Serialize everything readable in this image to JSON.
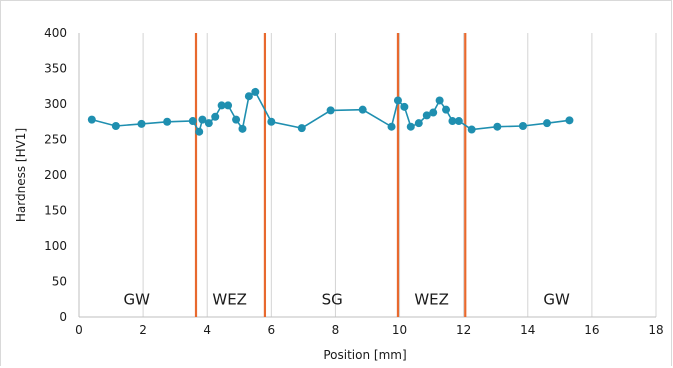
{
  "chart_data": {
    "type": "line",
    "xlabel": "Position [mm]",
    "ylabel": "Hardness [HV1]",
    "xlim": [
      0,
      18
    ],
    "ylim": [
      0,
      400
    ],
    "xticks": [
      0,
      2,
      4,
      6,
      8,
      10,
      12,
      14,
      16,
      18
    ],
    "yticks": [
      0,
      50,
      100,
      150,
      200,
      250,
      300,
      350,
      400
    ],
    "grid": "vertical",
    "series": [
      {
        "color": "#1f8fb0",
        "points": [
          [
            0.4,
            278
          ],
          [
            1.15,
            269
          ],
          [
            1.95,
            272
          ],
          [
            2.75,
            275
          ],
          [
            3.55,
            276
          ],
          [
            3.75,
            261
          ],
          [
            3.85,
            278
          ],
          [
            4.05,
            273
          ],
          [
            4.25,
            282
          ],
          [
            4.45,
            298
          ],
          [
            4.65,
            298
          ],
          [
            4.9,
            278
          ],
          [
            5.1,
            265
          ],
          [
            5.3,
            311
          ],
          [
            5.5,
            317
          ],
          [
            6.0,
            275
          ],
          [
            6.95,
            266
          ],
          [
            7.85,
            291
          ],
          [
            8.85,
            292
          ],
          [
            9.75,
            268
          ],
          [
            9.95,
            305
          ],
          [
            10.15,
            296
          ],
          [
            10.35,
            268
          ],
          [
            10.6,
            273
          ],
          [
            10.85,
            284
          ],
          [
            11.05,
            288
          ],
          [
            11.25,
            305
          ],
          [
            11.45,
            292
          ],
          [
            11.65,
            276
          ],
          [
            11.85,
            276
          ],
          [
            12.25,
            264
          ],
          [
            13.05,
            268
          ],
          [
            13.85,
            269
          ],
          [
            14.6,
            273
          ],
          [
            15.3,
            277
          ]
        ]
      }
    ],
    "zone_boundaries": [
      {
        "x": 3.65,
        "color": "#e8692e"
      },
      {
        "x": 5.8,
        "color": "#e8692e"
      },
      {
        "x": 9.95,
        "color": "#e8692e"
      },
      {
        "x": 12.05,
        "color": "#e8692e"
      }
    ],
    "zone_labels": [
      {
        "text": "GW",
        "x": 1.8
      },
      {
        "text": "WEZ",
        "x": 4.7
      },
      {
        "text": "SG",
        "x": 7.9
      },
      {
        "text": "WEZ",
        "x": 11.0
      },
      {
        "text": "GW",
        "x": 14.9
      }
    ],
    "zone_label_y": 25
  }
}
